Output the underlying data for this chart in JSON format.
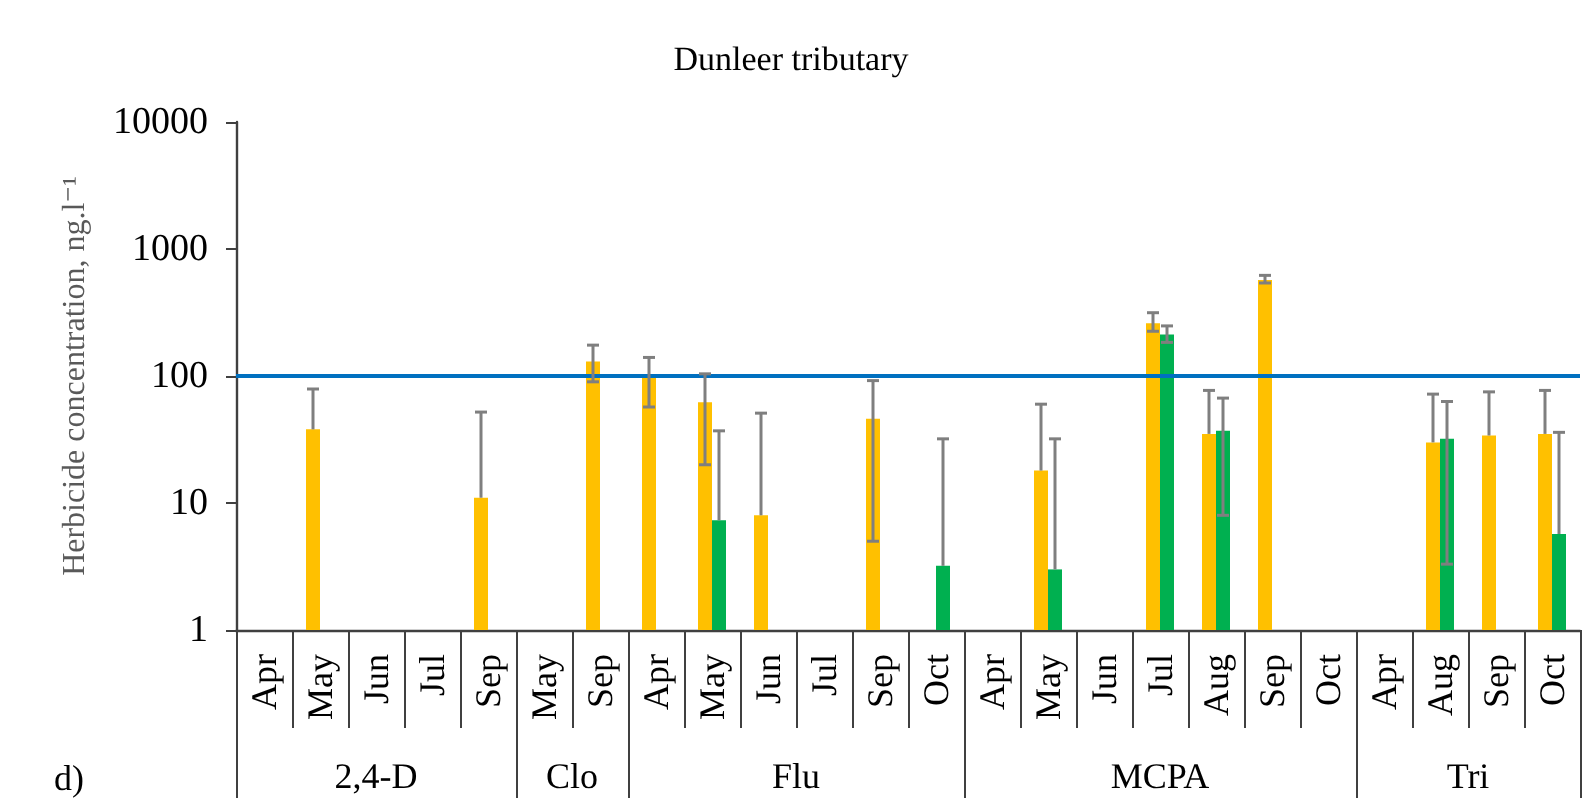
{
  "chart_data": [
    {
      "type": "bar",
      "ylabel": "Herbicide concentration, ng.l⁻¹",
      "xlabel": "2,4-D",
      "categories": [
        "Apr",
        "May",
        "Jun",
        "Jul",
        "Sep"
      ],
      "series": [
        {
          "color": "#ffc000",
          "values": [
            null,
            38,
            null,
            null,
            11
          ],
          "errors": [
            null,
            [
              38,
              79
            ],
            null,
            null,
            [
              11,
              52
            ]
          ]
        },
        {
          "color": "#00b050",
          "values": [
            null,
            null,
            null,
            null,
            null
          ]
        }
      ],
      "ylim": [
        1,
        10000
      ],
      "yticks": [
        1,
        10,
        100,
        1000,
        10000
      ],
      "log": true,
      "ref_lines": [
        {
          "axis": "y",
          "value": 100,
          "color": "#0070c0"
        }
      ],
      "annotations": [
        "d)"
      ]
    },
    {
      "type": "bar",
      "xlabel": "Clo",
      "categories": [
        "May",
        "Sep"
      ],
      "series": [
        {
          "color": "#ffc000",
          "values": [
            null,
            130
          ],
          "errors": [
            null,
            [
              90,
              175
            ]
          ]
        },
        {
          "color": "#00b050",
          "values": [
            null,
            null
          ]
        }
      ],
      "ylim": [
        1,
        10000
      ],
      "yticks": [
        1,
        10,
        100,
        1000,
        10000
      ],
      "log": true,
      "tick_labels": "x",
      "ref_lines": [
        {
          "axis": "y",
          "value": 100,
          "color": "#0070c0"
        }
      ]
    },
    {
      "type": "bar",
      "title": "Dunleer tributary",
      "xlabel": "Flu",
      "categories": [
        "Apr",
        "May",
        "Jun",
        "Jul",
        "Sep",
        "Oct"
      ],
      "series": [
        {
          "color": "#ffc000",
          "values": [
            98,
            62,
            8,
            null,
            46,
            null
          ],
          "errors": [
            [
              57,
              140
            ],
            [
              20,
              104
            ],
            [
              8,
              51
            ],
            null,
            [
              5,
              92
            ],
            null
          ]
        },
        {
          "color": "#00b050",
          "values": [
            null,
            7.3,
            null,
            null,
            null,
            3.2
          ],
          "errors": [
            null,
            [
              7.3,
              37
            ],
            null,
            null,
            null,
            [
              3.2,
              32
            ]
          ]
        }
      ],
      "ylim": [
        1,
        10000
      ],
      "yticks": [
        1,
        10,
        100,
        1000,
        10000
      ],
      "log": true,
      "tick_labels": "x",
      "ref_lines": [
        {
          "axis": "y",
          "value": 100,
          "color": "#0070c0"
        }
      ]
    },
    {
      "type": "bar",
      "xlabel": "MCPA",
      "categories": [
        "Apr",
        "May",
        "Jun",
        "Jul",
        "Aug",
        "Sep",
        "Oct"
      ],
      "series": [
        {
          "color": "#ffc000",
          "values": [
            null,
            18,
            null,
            260,
            35,
            570,
            null
          ],
          "errors": [
            null,
            [
              18,
              60
            ],
            null,
            [
              225,
              315
            ],
            [
              35,
              77
            ],
            [
              540,
              620
            ],
            null
          ]
        },
        {
          "color": "#00b050",
          "values": [
            null,
            3,
            null,
            212,
            37,
            null,
            null
          ],
          "errors": [
            null,
            [
              3,
              32
            ],
            null,
            [
              184,
              248
            ],
            [
              8,
              67
            ],
            null,
            null
          ]
        }
      ],
      "ylim": [
        1,
        10000
      ],
      "yticks": [
        1,
        10,
        100,
        1000,
        10000
      ],
      "log": true,
      "tick_labels": "x",
      "ref_lines": [
        {
          "axis": "y",
          "value": 100,
          "color": "#0070c0"
        }
      ]
    },
    {
      "type": "bar",
      "xlabel": "Tri",
      "categories": [
        "Apr",
        "Aug",
        "Sep",
        "Oct"
      ],
      "series": [
        {
          "color": "#ffc000",
          "values": [
            null,
            30,
            34,
            35
          ],
          "errors": [
            null,
            [
              30,
              72
            ],
            [
              34,
              75
            ],
            [
              35,
              77
            ]
          ]
        },
        {
          "color": "#00b050",
          "values": [
            null,
            32,
            null,
            5.7
          ],
          "errors": [
            null,
            [
              3.3,
              63
            ],
            null,
            [
              5.7,
              36
            ]
          ]
        }
      ],
      "ylim": [
        1,
        10000
      ],
      "yticks": [
        1,
        10,
        100,
        1000,
        10000
      ],
      "log": true,
      "tick_labels": "x",
      "ref_lines": [
        {
          "axis": "y",
          "value": 100,
          "color": "#0070c0"
        }
      ]
    }
  ]
}
